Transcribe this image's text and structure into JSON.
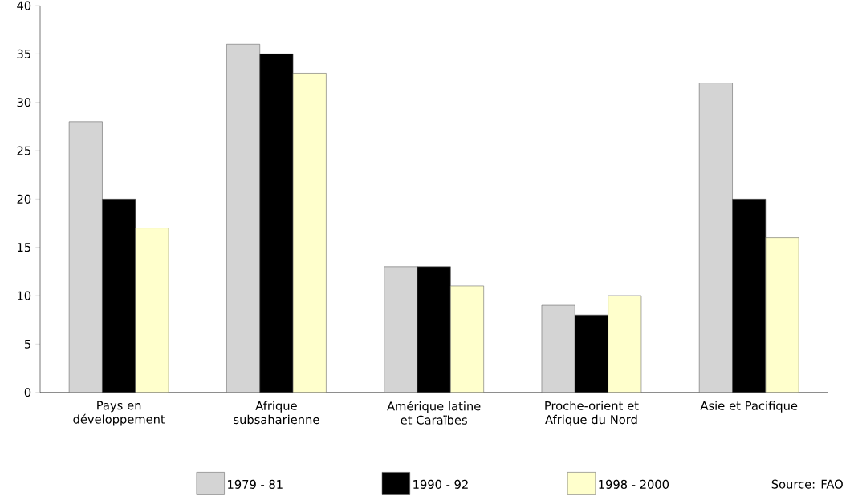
{
  "chart_data": {
    "type": "bar",
    "categories": [
      "Pays en développement",
      "Afrique subsaharienne",
      "Amérique latine et Caraïbes",
      "Proche-orient et Afrique du Nord",
      "Asie et Pacifique"
    ],
    "series": [
      {
        "name": "1979 - 81",
        "color": "#d4d4d4",
        "values": [
          28,
          36,
          13,
          9,
          32
        ]
      },
      {
        "name": "1990 - 92",
        "color": "#000000",
        "values": [
          20,
          35,
          13,
          8,
          20
        ]
      },
      {
        "name": "1998 - 2000",
        "color": "#ffffcc",
        "values": [
          17,
          33,
          11,
          10,
          16
        ]
      }
    ],
    "ylim": [
      0,
      40
    ],
    "yticks": [
      0,
      5,
      10,
      15,
      20,
      25,
      30,
      35,
      40
    ],
    "grid": false,
    "legend": "bottom",
    "annotations": [
      "Source: FAO"
    ]
  }
}
